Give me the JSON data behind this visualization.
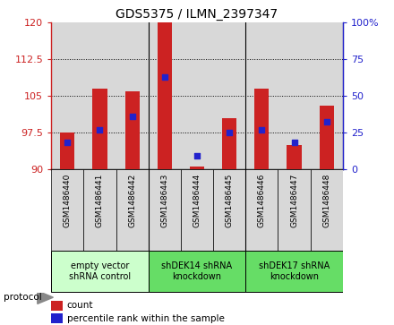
{
  "title": "GDS5375 / ILMN_2397347",
  "samples": [
    "GSM1486440",
    "GSM1486441",
    "GSM1486442",
    "GSM1486443",
    "GSM1486444",
    "GSM1486445",
    "GSM1486446",
    "GSM1486447",
    "GSM1486448"
  ],
  "counts": [
    97.5,
    106.5,
    106.0,
    120.0,
    90.5,
    100.5,
    106.5,
    95.0,
    103.0
  ],
  "percentile_ranks": [
    18,
    27,
    36,
    63,
    9,
    25,
    27,
    18,
    32
  ],
  "ylim_left": [
    90,
    120
  ],
  "ylim_right": [
    0,
    100
  ],
  "yticks_left": [
    90,
    97.5,
    105,
    112.5,
    120
  ],
  "yticks_right": [
    0,
    25,
    50,
    75,
    100
  ],
  "bar_color": "#cc2222",
  "dot_color": "#2222cc",
  "bar_bottom": 90,
  "groups": [
    {
      "label": "empty vector\nshRNA control",
      "start": 0,
      "end": 3,
      "color": "#ccffcc"
    },
    {
      "label": "shDEK14 shRNA\nknockdown",
      "start": 3,
      "end": 6,
      "color": "#88ee88"
    },
    {
      "label": "shDEK17 shRNA\nknockdown",
      "start": 6,
      "end": 9,
      "color": "#88ee88"
    }
  ],
  "sample_bg_color": "#d8d8d8",
  "group1_color": "#ccffcc",
  "group23_color": "#66dd66",
  "legend_count_label": "count",
  "legend_pct_label": "percentile rank within the sample",
  "protocol_label": "protocol"
}
